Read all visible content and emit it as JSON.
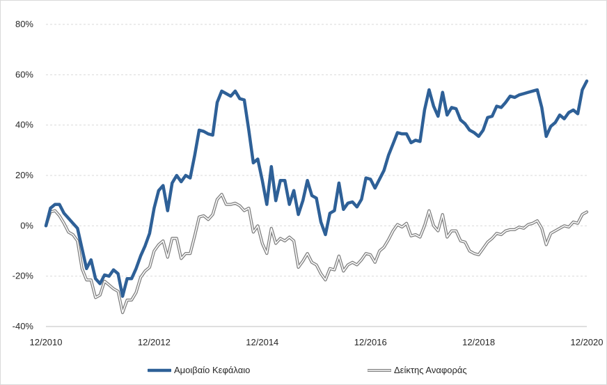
{
  "chart_data": {
    "type": "line",
    "title": "",
    "xlabel": "",
    "ylabel": "",
    "ylim": [
      -40,
      80
    ],
    "y_ticks": [
      "80%",
      "60%",
      "40%",
      "20%",
      "0%",
      "-20%",
      "-40%"
    ],
    "y_tick_values": [
      80,
      60,
      40,
      20,
      0,
      -20,
      -40
    ],
    "x_range": [
      "12/2010",
      "12/2020"
    ],
    "x_ticks": [
      "12/2010",
      "12/2012",
      "12/2014",
      "12/2016",
      "12/2018",
      "12/2020"
    ],
    "grid": "horizontal dashed",
    "legend_position": "bottom",
    "x_step": "quarter-month (approximately monthly samples)",
    "series": [
      {
        "name": "Αμοιβαίο Κεφάλαιο",
        "color": "#2e6097",
        "style": "thick solid",
        "points": [
          [
            "12/2010",
            0
          ],
          [
            "01/2011",
            7
          ],
          [
            "02/2011",
            8.5
          ],
          [
            "03/2011",
            8.5
          ],
          [
            "04/2011",
            5
          ],
          [
            "05/2011",
            3
          ],
          [
            "06/2011",
            1
          ],
          [
            "07/2011",
            -1
          ],
          [
            "08/2011",
            -9
          ],
          [
            "09/2011",
            -17
          ],
          [
            "10/2011",
            -13.5
          ],
          [
            "11/2011",
            -21
          ],
          [
            "12/2011",
            -23
          ],
          [
            "01/2012",
            -19.5
          ],
          [
            "02/2012",
            -20
          ],
          [
            "03/2012",
            -17.5
          ],
          [
            "04/2012",
            -19
          ],
          [
            "05/2012",
            -28
          ],
          [
            "06/2012",
            -21
          ],
          [
            "07/2012",
            -21
          ],
          [
            "08/2012",
            -17
          ],
          [
            "09/2012",
            -12
          ],
          [
            "10/2012",
            -8
          ],
          [
            "11/2012",
            -3
          ],
          [
            "12/2012",
            7
          ],
          [
            "01/2013",
            14
          ],
          [
            "02/2013",
            16
          ],
          [
            "03/2013",
            6
          ],
          [
            "04/2013",
            17
          ],
          [
            "05/2013",
            20
          ],
          [
            "06/2013",
            17.5
          ],
          [
            "07/2013",
            20
          ],
          [
            "08/2013",
            19
          ],
          [
            "09/2013",
            28
          ],
          [
            "10/2013",
            38
          ],
          [
            "11/2013",
            37.5
          ],
          [
            "12/2013",
            36.5
          ],
          [
            "01/2014",
            36
          ],
          [
            "02/2014",
            49
          ],
          [
            "03/2014",
            53.5
          ],
          [
            "04/2014",
            52.5
          ],
          [
            "05/2014",
            51.5
          ],
          [
            "06/2014",
            53.5
          ],
          [
            "07/2014",
            50.5
          ],
          [
            "08/2014",
            50
          ],
          [
            "09/2014",
            38
          ],
          [
            "10/2014",
            25
          ],
          [
            "11/2014",
            26.5
          ],
          [
            "12/2014",
            18
          ],
          [
            "01/2015",
            8.5
          ],
          [
            "02/2015",
            23.5
          ],
          [
            "03/2015",
            10
          ],
          [
            "04/2015",
            18
          ],
          [
            "05/2015",
            18
          ],
          [
            "06/2015",
            8.5
          ],
          [
            "07/2015",
            14
          ],
          [
            "08/2015",
            4.5
          ],
          [
            "09/2015",
            10
          ],
          [
            "10/2015",
            18
          ],
          [
            "11/2015",
            12
          ],
          [
            "12/2015",
            11
          ],
          [
            "01/2016",
            1.5
          ],
          [
            "02/2016",
            -3.5
          ],
          [
            "03/2016",
            5
          ],
          [
            "04/2016",
            6
          ],
          [
            "05/2016",
            17
          ],
          [
            "06/2016",
            6.5
          ],
          [
            "07/2016",
            9
          ],
          [
            "08/2016",
            9.5
          ],
          [
            "09/2016",
            7.5
          ],
          [
            "10/2016",
            10.5
          ],
          [
            "11/2016",
            19
          ],
          [
            "12/2016",
            18.5
          ],
          [
            "01/2017",
            15
          ],
          [
            "02/2017",
            18.5
          ],
          [
            "03/2017",
            22
          ],
          [
            "04/2017",
            28
          ],
          [
            "05/2017",
            32.5
          ],
          [
            "06/2017",
            37
          ],
          [
            "07/2017",
            36.5
          ],
          [
            "08/2017",
            36.5
          ],
          [
            "09/2017",
            33
          ],
          [
            "10/2017",
            34
          ],
          [
            "11/2017",
            33.5
          ],
          [
            "12/2017",
            46
          ],
          [
            "01/2018",
            54
          ],
          [
            "02/2018",
            47.5
          ],
          [
            "03/2018",
            43.5
          ],
          [
            "04/2018",
            53
          ],
          [
            "05/2018",
            44
          ],
          [
            "06/2018",
            47
          ],
          [
            "07/2018",
            46.5
          ],
          [
            "08/2018",
            42
          ],
          [
            "09/2018",
            40.5
          ],
          [
            "10/2018",
            38
          ],
          [
            "11/2018",
            37
          ],
          [
            "12/2018",
            35.5
          ],
          [
            "01/2019",
            38
          ],
          [
            "02/2019",
            43
          ],
          [
            "03/2019",
            43.5
          ],
          [
            "04/2019",
            47.5
          ],
          [
            "05/2019",
            47
          ],
          [
            "06/2019",
            49
          ],
          [
            "07/2019",
            51.5
          ],
          [
            "08/2019",
            51
          ],
          [
            "09/2019",
            52
          ],
          [
            "10/2019",
            52.5
          ],
          [
            "11/2019",
            53
          ],
          [
            "12/2019",
            53.5
          ],
          [
            "01/2020",
            54
          ],
          [
            "02/2020",
            47
          ],
          [
            "03/2020",
            35.5
          ],
          [
            "04/2020",
            39.5
          ],
          [
            "05/2020",
            41
          ],
          [
            "06/2020",
            44
          ],
          [
            "07/2020",
            42.5
          ],
          [
            "08/2020",
            45
          ],
          [
            "09/2020",
            46
          ],
          [
            "10/2020",
            44.5
          ],
          [
            "11/2020",
            54
          ],
          [
            "12/2020",
            57.5
          ]
        ]
      },
      {
        "name": "Δείκτης Αναφοράς",
        "color": "#7f7f7f",
        "style": "double line",
        "points": [
          [
            "12/2010",
            0
          ],
          [
            "01/2011",
            5.5
          ],
          [
            "02/2011",
            6
          ],
          [
            "03/2011",
            4
          ],
          [
            "04/2011",
            1
          ],
          [
            "05/2011",
            -2.5
          ],
          [
            "06/2011",
            -3.5
          ],
          [
            "07/2011",
            -6
          ],
          [
            "08/2011",
            -17
          ],
          [
            "09/2011",
            -21.5
          ],
          [
            "10/2011",
            -21.5
          ],
          [
            "11/2011",
            -28.5
          ],
          [
            "12/2011",
            -27.5
          ],
          [
            "01/2012",
            -22
          ],
          [
            "02/2012",
            -23.5
          ],
          [
            "03/2012",
            -25
          ],
          [
            "04/2012",
            -26
          ],
          [
            "05/2012",
            -34.5
          ],
          [
            "06/2012",
            -29.5
          ],
          [
            "07/2012",
            -29.5
          ],
          [
            "08/2012",
            -26.5
          ],
          [
            "09/2012",
            -20.5
          ],
          [
            "10/2012",
            -18
          ],
          [
            "11/2012",
            -16.5
          ],
          [
            "12/2012",
            -10
          ],
          [
            "01/2013",
            -7.5
          ],
          [
            "02/2013",
            -6
          ],
          [
            "03/2013",
            -12.5
          ],
          [
            "04/2013",
            -5
          ],
          [
            "05/2013",
            -5
          ],
          [
            "06/2013",
            -13
          ],
          [
            "07/2013",
            -11
          ],
          [
            "08/2013",
            -11
          ],
          [
            "09/2013",
            -4
          ],
          [
            "10/2013",
            3.5
          ],
          [
            "11/2013",
            4
          ],
          [
            "12/2013",
            2.5
          ],
          [
            "01/2014",
            4.5
          ],
          [
            "02/2014",
            10.5
          ],
          [
            "03/2014",
            12.5
          ],
          [
            "04/2014",
            8.5
          ],
          [
            "05/2014",
            8.5
          ],
          [
            "06/2014",
            9
          ],
          [
            "07/2014",
            8
          ],
          [
            "08/2014",
            6
          ],
          [
            "09/2014",
            7
          ],
          [
            "10/2014",
            -2.5
          ],
          [
            "11/2014",
            0
          ],
          [
            "12/2014",
            -7
          ],
          [
            "01/2015",
            -11
          ],
          [
            "02/2015",
            -1
          ],
          [
            "03/2015",
            -7
          ],
          [
            "04/2015",
            -5
          ],
          [
            "05/2015",
            -6
          ],
          [
            "06/2015",
            -4.5
          ],
          [
            "07/2015",
            -6
          ],
          [
            "08/2015",
            -16.5
          ],
          [
            "09/2015",
            -14
          ],
          [
            "10/2015",
            -11
          ],
          [
            "11/2015",
            -14.5
          ],
          [
            "12/2015",
            -15.5
          ],
          [
            "01/2016",
            -19
          ],
          [
            "02/2016",
            -21.5
          ],
          [
            "03/2016",
            -17
          ],
          [
            "04/2016",
            -17.5
          ],
          [
            "05/2016",
            -12
          ],
          [
            "06/2016",
            -18
          ],
          [
            "07/2016",
            -15.5
          ],
          [
            "08/2016",
            -14.5
          ],
          [
            "09/2016",
            -15.5
          ],
          [
            "10/2016",
            -13.5
          ],
          [
            "11/2016",
            -11
          ],
          [
            "12/2016",
            -11.5
          ],
          [
            "01/2017",
            -14.5
          ],
          [
            "02/2017",
            -10
          ],
          [
            "03/2017",
            -8.5
          ],
          [
            "04/2017",
            -5.5
          ],
          [
            "05/2017",
            -2
          ],
          [
            "06/2017",
            0.5
          ],
          [
            "07/2017",
            -0.5
          ],
          [
            "08/2017",
            1
          ],
          [
            "09/2017",
            -4
          ],
          [
            "10/2017",
            -3.5
          ],
          [
            "11/2017",
            -4.5
          ],
          [
            "12/2017",
            0
          ],
          [
            "01/2018",
            6
          ],
          [
            "02/2018",
            0
          ],
          [
            "03/2018",
            -2
          ],
          [
            "04/2018",
            4.5
          ],
          [
            "05/2018",
            -4.5
          ],
          [
            "06/2018",
            -2
          ],
          [
            "07/2018",
            -2
          ],
          [
            "08/2018",
            -6
          ],
          [
            "09/2018",
            -6.5
          ],
          [
            "10/2018",
            -10
          ],
          [
            "11/2018",
            -11
          ],
          [
            "12/2018",
            -11.5
          ],
          [
            "01/2019",
            -9
          ],
          [
            "02/2019",
            -6.5
          ],
          [
            "03/2019",
            -5
          ],
          [
            "04/2019",
            -3
          ],
          [
            "05/2019",
            -3.5
          ],
          [
            "06/2019",
            -2
          ],
          [
            "07/2019",
            -1.5
          ],
          [
            "08/2019",
            -1.5
          ],
          [
            "09/2019",
            -0.5
          ],
          [
            "10/2019",
            -1
          ],
          [
            "11/2019",
            0.5
          ],
          [
            "12/2019",
            1
          ],
          [
            "01/2020",
            2
          ],
          [
            "02/2020",
            -1
          ],
          [
            "03/2020",
            -7.5
          ],
          [
            "04/2020",
            -3
          ],
          [
            "05/2020",
            -2
          ],
          [
            "06/2020",
            -1
          ],
          [
            "07/2020",
            0
          ],
          [
            "08/2020",
            -0.5
          ],
          [
            "09/2020",
            1.5
          ],
          [
            "10/2020",
            1
          ],
          [
            "11/2020",
            4.5
          ],
          [
            "12/2020",
            5.5
          ]
        ]
      }
    ]
  }
}
